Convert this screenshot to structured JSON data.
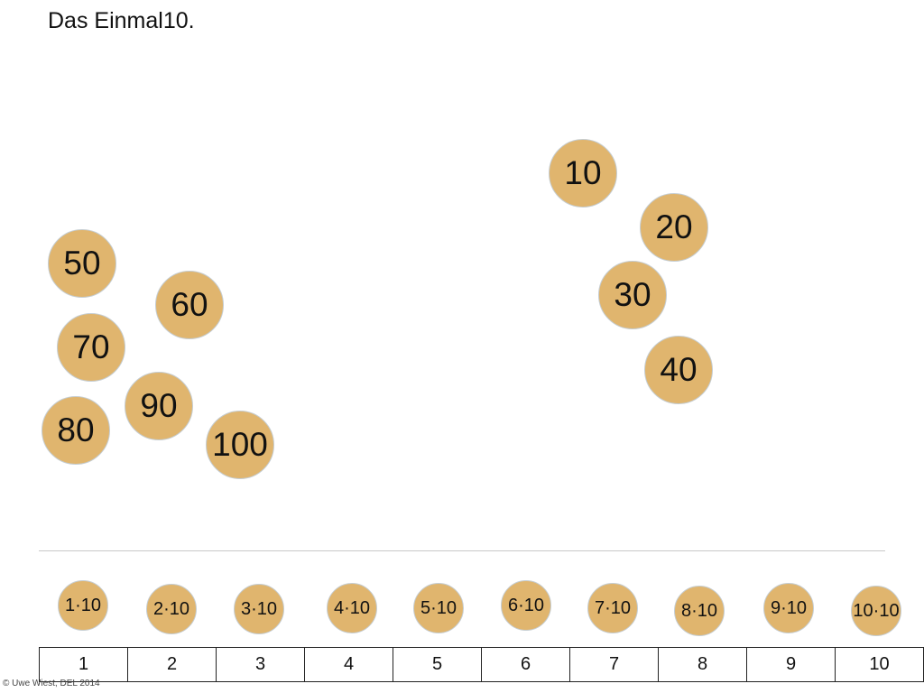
{
  "title": "Das Einmal10.",
  "results": [
    {
      "label": "10"
    },
    {
      "label": "20"
    },
    {
      "label": "30"
    },
    {
      "label": "40"
    },
    {
      "label": "50"
    },
    {
      "label": "60"
    },
    {
      "label": "70"
    },
    {
      "label": "80"
    },
    {
      "label": "90"
    },
    {
      "label": "100"
    }
  ],
  "tasks": [
    {
      "label": "1·10"
    },
    {
      "label": "2·10"
    },
    {
      "label": "3·10"
    },
    {
      "label": "4·10"
    },
    {
      "label": "5·10"
    },
    {
      "label": "6·10"
    },
    {
      "label": "7·10"
    },
    {
      "label": "8·10"
    },
    {
      "label": "9·10"
    },
    {
      "label": "10·10"
    }
  ],
  "slots": [
    {
      "label": "1"
    },
    {
      "label": "2"
    },
    {
      "label": "3"
    },
    {
      "label": "4"
    },
    {
      "label": "5"
    },
    {
      "label": "6"
    },
    {
      "label": "7"
    },
    {
      "label": "8"
    },
    {
      "label": "9"
    },
    {
      "label": "10"
    }
  ],
  "footer": {
    "copyright": "© Uwe Wiest, DEL 2014"
  },
  "colors": {
    "token_fill": "#e0b56e",
    "token_border": "#c5cdd2",
    "divider": "#c8c8c8"
  }
}
